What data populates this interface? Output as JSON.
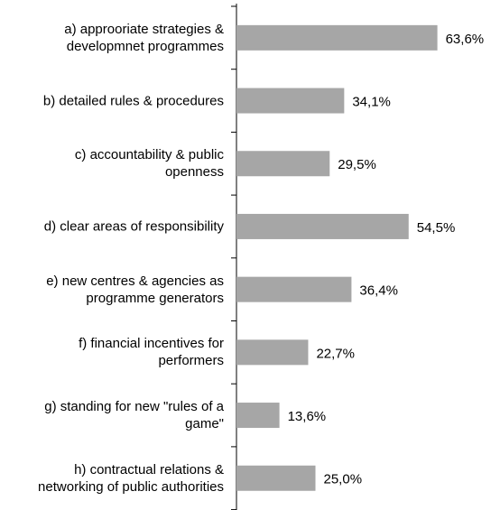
{
  "chart_data": {
    "type": "bar",
    "orientation": "horizontal",
    "categories": [
      "a) approoriate strategies & developmnet programmes",
      "b) detailed rules & procedures",
      "c) accountability & public openness",
      "d) clear areas of responsibility",
      "e) new centres & agencies as programme generators",
      "f) financial incentives for performers",
      "g) standing for new \"rules of a game\"",
      "h) contractual relations & networking of public authorities"
    ],
    "values": [
      63.6,
      34.1,
      29.5,
      54.5,
      36.4,
      22.7,
      13.6,
      25.0
    ],
    "value_labels": [
      "63,6%",
      "34,1%",
      "29,5%",
      "54,5%",
      "36,4%",
      "22,7%",
      "13,6%",
      "25,0%"
    ],
    "color": "#a6a6a6",
    "xlim": [
      0,
      80
    ]
  }
}
